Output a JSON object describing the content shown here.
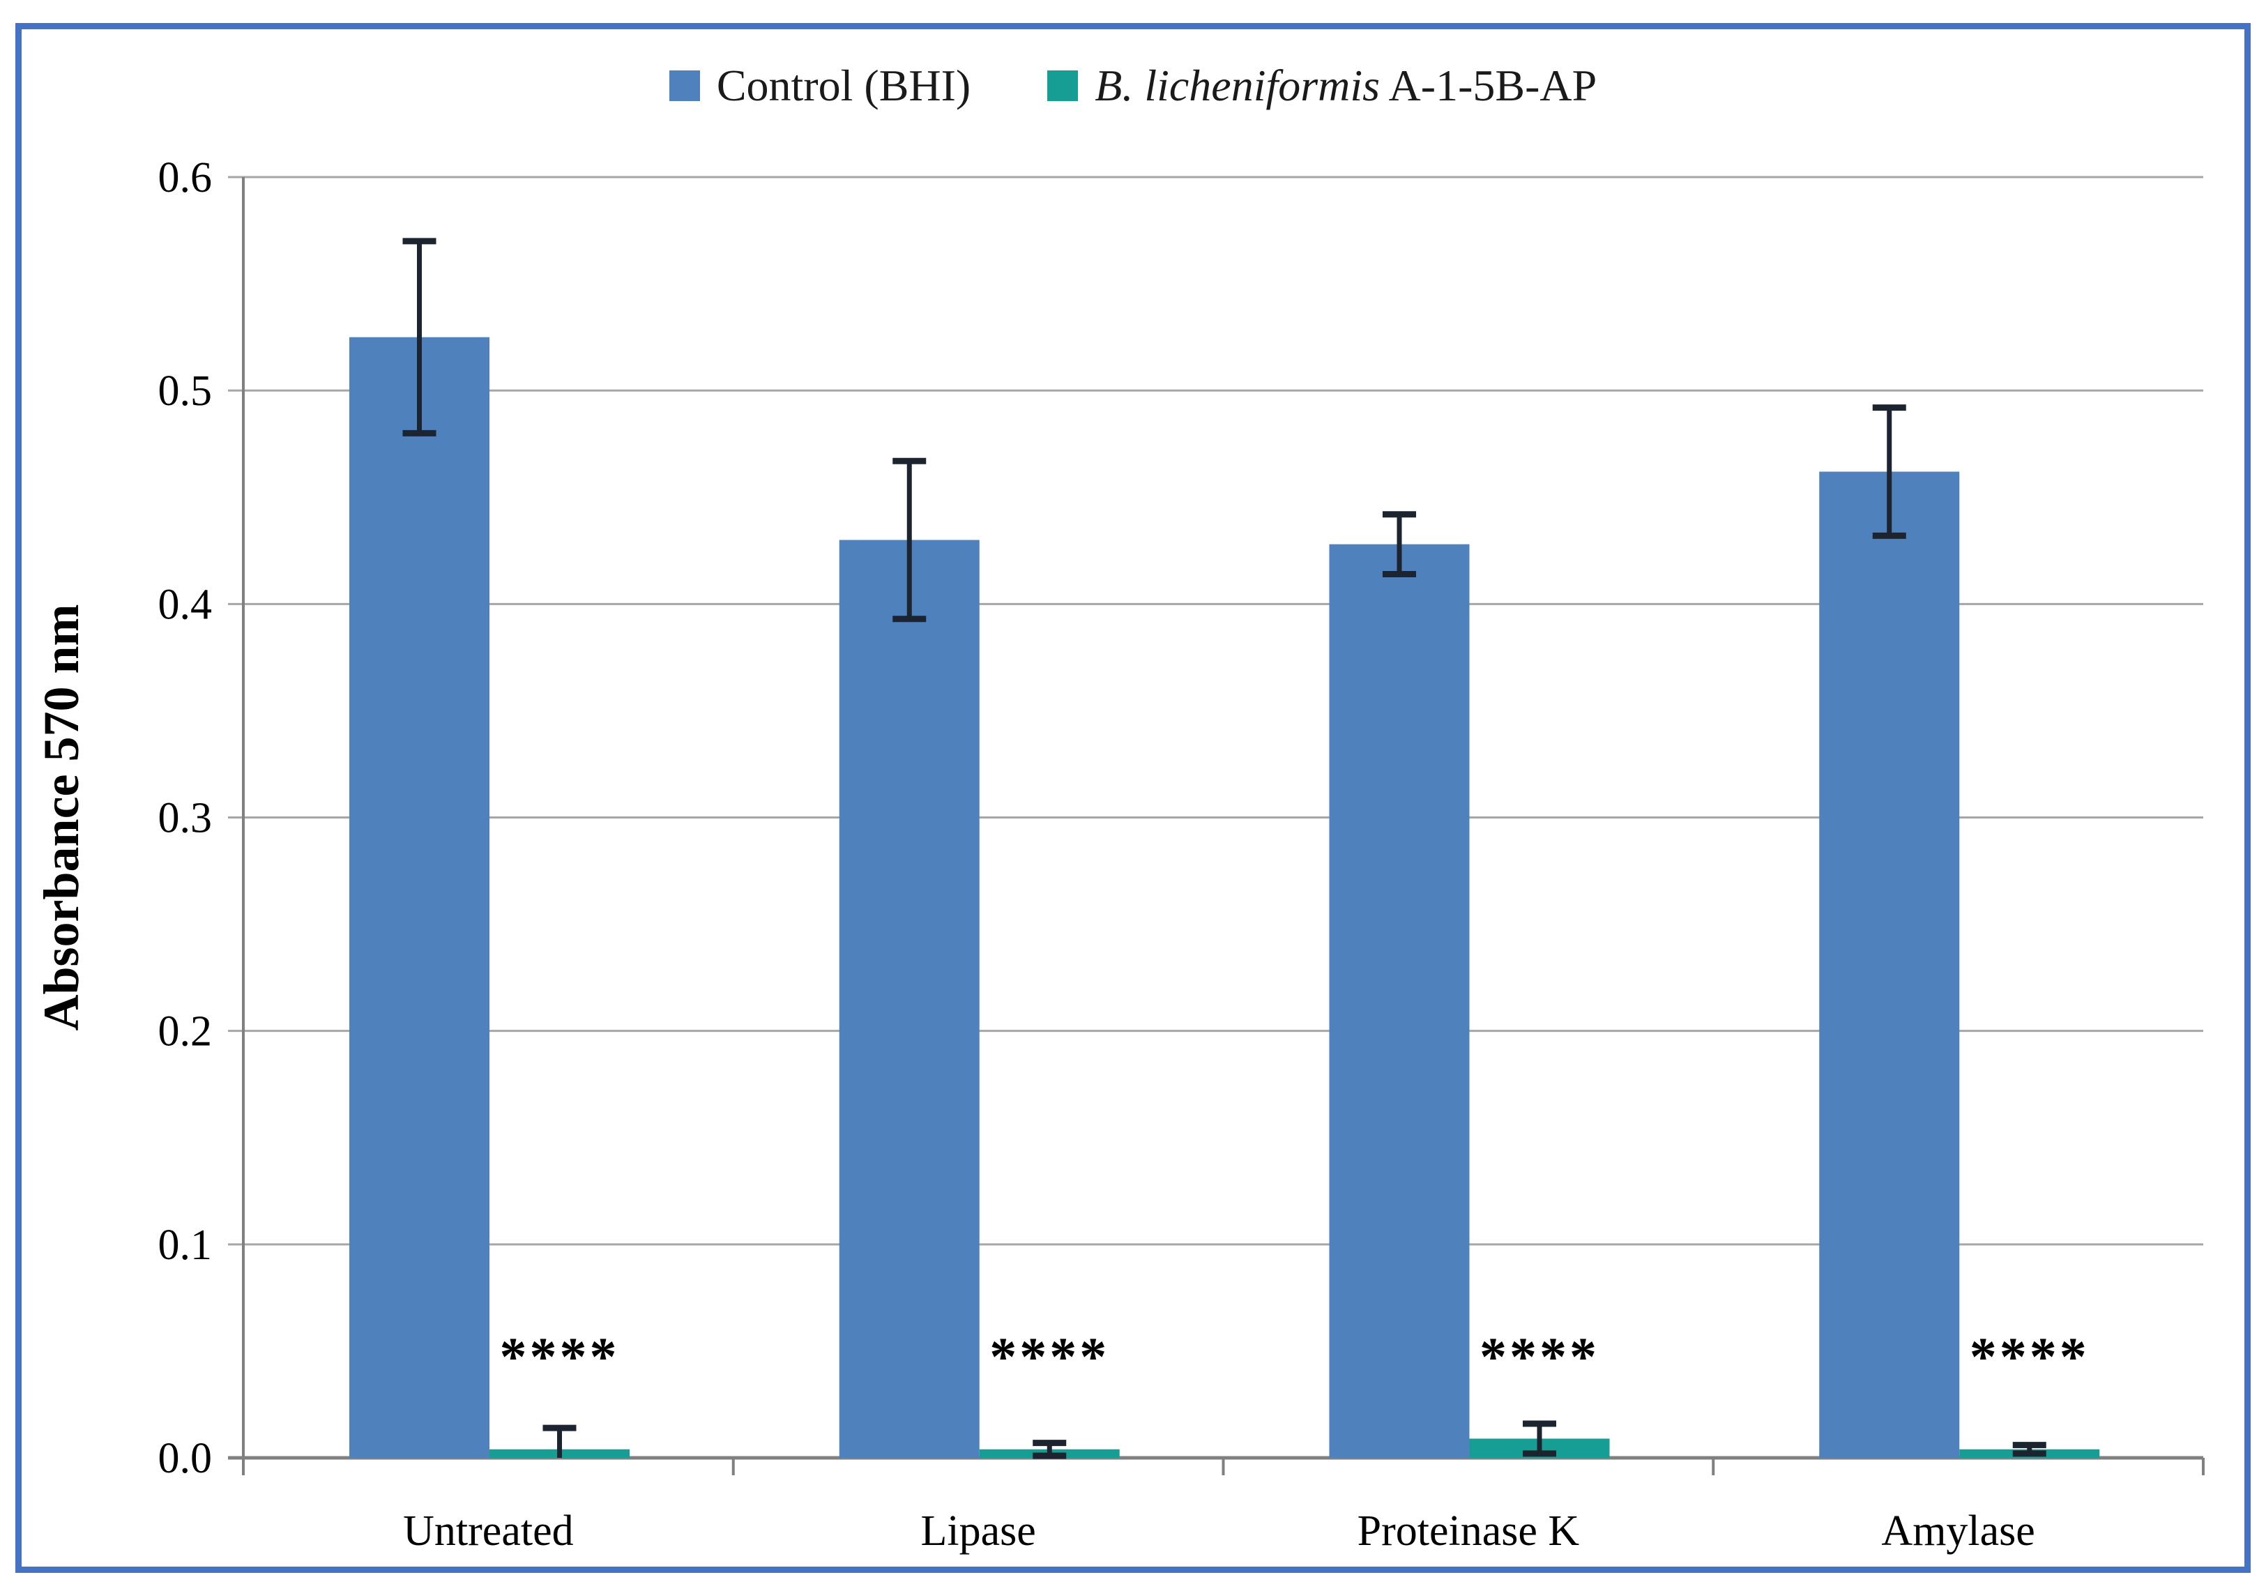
{
  "figure": {
    "border_color": "#4472C4",
    "background_color": "#FFFFFF"
  },
  "legend": {
    "item1": {
      "swatch_color": "#4F81BD",
      "label": "Control (BHI)"
    },
    "item2": {
      "swatch_color": "#169E94",
      "label_italic": "B. licheniformis",
      "label_rest": " A-1-5B-AP"
    }
  },
  "chart_data": {
    "type": "bar",
    "title": "",
    "xlabel": "",
    "ylabel": "Absorbance 570 nm",
    "ylim": [
      0,
      0.6
    ],
    "yticks": [
      0,
      0.1,
      0.2,
      0.3,
      0.4,
      0.5,
      0.6
    ],
    "ytick_labels": [
      "0.0",
      "0.1",
      "0.2",
      "0.3",
      "0.4",
      "0.5",
      "0.6"
    ],
    "grid": true,
    "legend_position": "top-center",
    "categories": [
      "Untreated",
      "Lipase",
      "Proteinase K",
      "Amylase"
    ],
    "series": [
      {
        "name": "Control (BHI)",
        "color": "#4F81BD",
        "values": [
          0.525,
          0.43,
          0.428,
          0.462
        ],
        "errors": [
          0.045,
          0.037,
          0.014,
          0.03
        ]
      },
      {
        "name": "B. licheniformis A-1-5B-AP",
        "color": "#169E94",
        "values": [
          0.004,
          0.004,
          0.009,
          0.004
        ],
        "errors": [
          0.01,
          0.003,
          0.007,
          0.002
        ]
      }
    ],
    "significance": {
      "series": "B. licheniformis A-1-5B-AP",
      "labels": [
        "****",
        "****",
        "****",
        "****"
      ]
    },
    "colors": {
      "gridline": "#A6A6A6",
      "axis": "#808080",
      "error_bar": "#1C2430",
      "text": "#000000"
    }
  }
}
